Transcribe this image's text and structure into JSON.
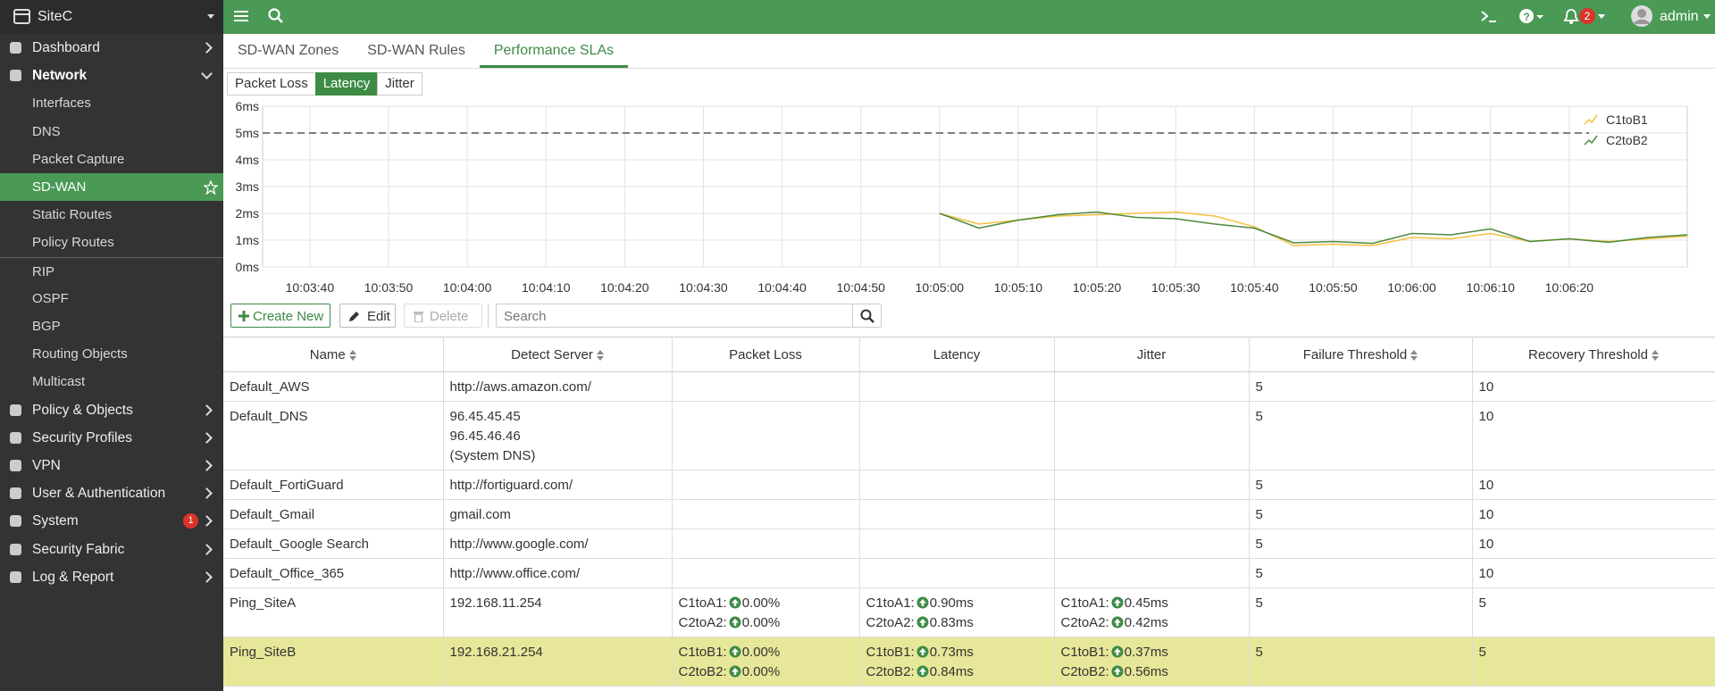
{
  "topbar": {
    "site": "SiteC",
    "notifications": "2",
    "user": "admin"
  },
  "sidebar": {
    "items": [
      {
        "label": "Dashboard"
      },
      {
        "label": "Network",
        "children": [
          "Interfaces",
          "DNS",
          "Packet Capture",
          "SD-WAN",
          "Static Routes",
          "Policy Routes",
          "RIP",
          "OSPF",
          "BGP",
          "Routing Objects",
          "Multicast"
        ],
        "active_child": 3
      },
      {
        "label": "Policy & Objects"
      },
      {
        "label": "Security Profiles"
      },
      {
        "label": "VPN"
      },
      {
        "label": "User & Authentication"
      },
      {
        "label": "System",
        "badge": "1"
      },
      {
        "label": "Security Fabric"
      },
      {
        "label": "Log & Report"
      }
    ]
  },
  "tabs": {
    "items": [
      "SD-WAN Zones",
      "SD-WAN Rules",
      "Performance SLAs"
    ],
    "active": 2
  },
  "chart": {
    "type": "line",
    "buttons": [
      "Packet Loss",
      "Latency",
      "Jitter"
    ],
    "active_button": 1,
    "x": [
      "10:05:00",
      "10:05:05",
      "10:05:10",
      "10:05:15",
      "10:05:20",
      "10:05:25",
      "10:05:30",
      "10:05:35",
      "10:05:40",
      "10:05:45",
      "10:05:50",
      "10:05:55",
      "10:06:00",
      "10:06:05",
      "10:06:10",
      "10:06:15",
      "10:06:20",
      "10:06:25",
      "10:06:30",
      "10:06:35"
    ],
    "xlim": [
      "10:03:34",
      "10:06:35"
    ],
    "xticks": [
      "10:03:40",
      "10:03:50",
      "10:04:00",
      "10:04:10",
      "10:04:20",
      "10:04:30",
      "10:04:40",
      "10:04:50",
      "10:05:00",
      "10:05:10",
      "10:05:20",
      "10:05:30",
      "10:05:40",
      "10:05:50",
      "10:06:00",
      "10:06:10",
      "10:06:20"
    ],
    "ylim": [
      0,
      6
    ],
    "yticks": [
      {
        "value": 0,
        "label": "0ms"
      },
      {
        "value": 1,
        "label": "1ms"
      },
      {
        "value": 2,
        "label": "2ms"
      },
      {
        "value": 3,
        "label": "3ms"
      },
      {
        "value": 4,
        "label": "4ms"
      },
      {
        "value": 5,
        "label": "5ms"
      },
      {
        "value": 6,
        "label": "6ms"
      }
    ],
    "threshold": 5,
    "grid": true,
    "legend": "top-right",
    "series": [
      {
        "name": "C1toB1",
        "color": "#f4c03e",
        "values": [
          2.0,
          1.6,
          1.75,
          1.9,
          1.95,
          2.0,
          2.05,
          1.9,
          1.5,
          0.8,
          0.85,
          0.8,
          1.1,
          1.05,
          1.25,
          0.95,
          1.05,
          0.95,
          1.05,
          1.15
        ]
      },
      {
        "name": "C2toB2",
        "color": "#4c8a3e",
        "values": [
          2.0,
          1.45,
          1.75,
          1.95,
          2.05,
          1.85,
          1.8,
          1.6,
          1.45,
          0.9,
          0.95,
          0.88,
          1.25,
          1.2,
          1.42,
          0.95,
          1.05,
          0.92,
          1.1,
          1.2
        ]
      }
    ]
  },
  "toolbar": {
    "create": "Create New",
    "edit": "Edit",
    "delete": "Delete",
    "search_placeholder": "Search"
  },
  "table": {
    "columns": [
      {
        "label": "Name",
        "sortable": true
      },
      {
        "label": "Detect Server",
        "sortable": true
      },
      {
        "label": "Packet Loss"
      },
      {
        "label": "Latency"
      },
      {
        "label": "Jitter"
      },
      {
        "label": "Failure Threshold",
        "sortable": true
      },
      {
        "label": "Recovery Threshold",
        "sortable": true
      }
    ],
    "rows": [
      {
        "cells": [
          "Default_AWS",
          [
            "http://aws.amazon.com/"
          ],
          null,
          null,
          null,
          "5",
          "10"
        ]
      },
      {
        "cells": [
          "Default_DNS",
          [
            "96.45.45.45",
            "96.45.46.46",
            "(System DNS)"
          ],
          null,
          null,
          null,
          "5",
          "10"
        ]
      },
      {
        "cells": [
          "Default_FortiGuard",
          [
            "http://fortiguard.com/"
          ],
          null,
          null,
          null,
          "5",
          "10"
        ]
      },
      {
        "cells": [
          "Default_Gmail",
          [
            "gmail.com"
          ],
          null,
          null,
          null,
          "5",
          "10"
        ]
      },
      {
        "cells": [
          "Default_Google Search",
          [
            "http://www.google.com/"
          ],
          null,
          null,
          null,
          "5",
          "10"
        ]
      },
      {
        "cells": [
          "Default_Office_365",
          [
            "http://www.office.com/"
          ],
          null,
          null,
          null,
          "5",
          "10"
        ]
      },
      {
        "cells": [
          "Ping_SiteA",
          [
            "192.168.11.254"
          ],
          [
            {
              "link": "C1toA1:",
              "value": "0.00%"
            },
            {
              "link": "C2toA2:",
              "value": "0.00%"
            }
          ],
          [
            {
              "link": "C1toA1:",
              "value": "0.90ms"
            },
            {
              "link": "C2toA2:",
              "value": "0.83ms"
            }
          ],
          [
            {
              "link": "C1toA1:",
              "value": "0.45ms"
            },
            {
              "link": "C2toA2:",
              "value": "0.42ms"
            }
          ],
          "5",
          "5"
        ]
      },
      {
        "cells": [
          "Ping_SiteB",
          [
            "192.168.21.254"
          ],
          [
            {
              "link": "C1toB1:",
              "value": "0.00%"
            },
            {
              "link": "C2toB2:",
              "value": "0.00%"
            }
          ],
          [
            {
              "link": "C1toB1:",
              "value": "0.73ms"
            },
            {
              "link": "C2toB2:",
              "value": "0.84ms"
            }
          ],
          [
            {
              "link": "C1toB1:",
              "value": "0.37ms"
            },
            {
              "link": "C2toB2:",
              "value": "0.56ms"
            }
          ],
          "5",
          "5"
        ]
      }
    ],
    "selected_row": 7
  }
}
